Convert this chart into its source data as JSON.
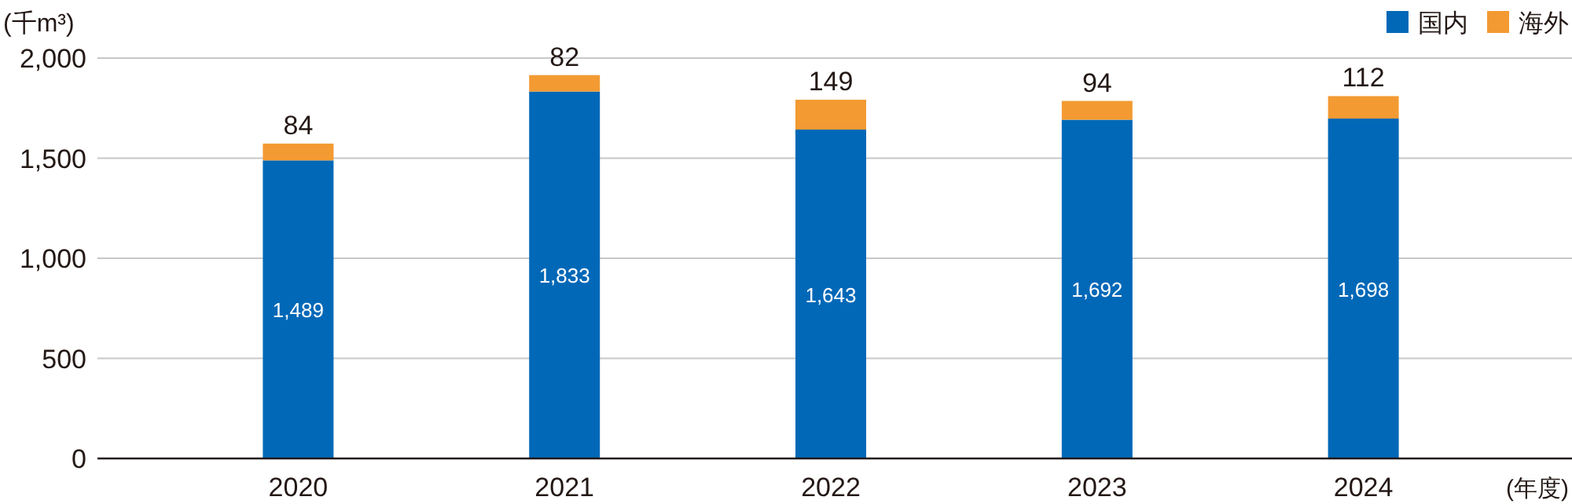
{
  "chart_data": {
    "type": "bar",
    "stacked": true,
    "ylabel": "(千m³)",
    "xlabel": "(年度)",
    "categories": [
      "2020",
      "2021",
      "2022",
      "2023",
      "2024"
    ],
    "series": [
      {
        "name": "国内",
        "color": "#0068b7",
        "values": [
          1489,
          1833,
          1643,
          1692,
          1698
        ],
        "value_labels": [
          "1,489",
          "1,833",
          "1,643",
          "1,692",
          "1,698"
        ]
      },
      {
        "name": "海外",
        "color": "#f39a32",
        "values": [
          84,
          82,
          149,
          94,
          112
        ],
        "value_labels": [
          "84",
          "82",
          "149",
          "94",
          "112"
        ]
      }
    ],
    "ylim": [
      0,
      2000
    ],
    "yticks": [
      0,
      500,
      {
        "value": 1000,
        "label": "1,000"
      },
      {
        "value": 1500,
        "label": "1,500"
      },
      {
        "value": 2000,
        "label": "2,000"
      }
    ],
    "grid": "y",
    "legend": "top right"
  }
}
